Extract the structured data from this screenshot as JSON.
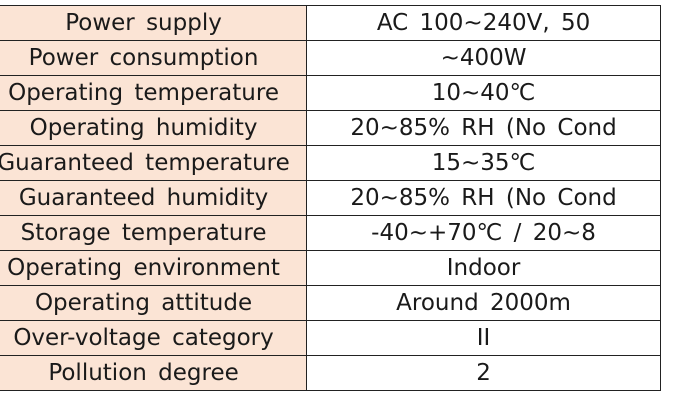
{
  "spec_table": {
    "rows": [
      {
        "label": "Power supply",
        "value": "AC 100~240V, 50"
      },
      {
        "label": "Power consumption",
        "value": "~400W"
      },
      {
        "label": "Operating temperature",
        "value": "10~40℃"
      },
      {
        "label": "Operating humidity",
        "value": "20~85% RH (No Cond"
      },
      {
        "label": "Guaranteed temperature",
        "value": "15~35℃"
      },
      {
        "label": "Guaranteed humidity",
        "value": "20~85% RH (No Cond"
      },
      {
        "label": "Storage temperature",
        "value": "-40~+70℃ / 20~8"
      },
      {
        "label": "Operating environment",
        "value": "Indoor"
      },
      {
        "label": "Operating attitude",
        "value": "Around 2000m"
      },
      {
        "label": "Over-voltage category",
        "value": "II"
      },
      {
        "label": "Pollution degree",
        "value": "2"
      }
    ]
  }
}
